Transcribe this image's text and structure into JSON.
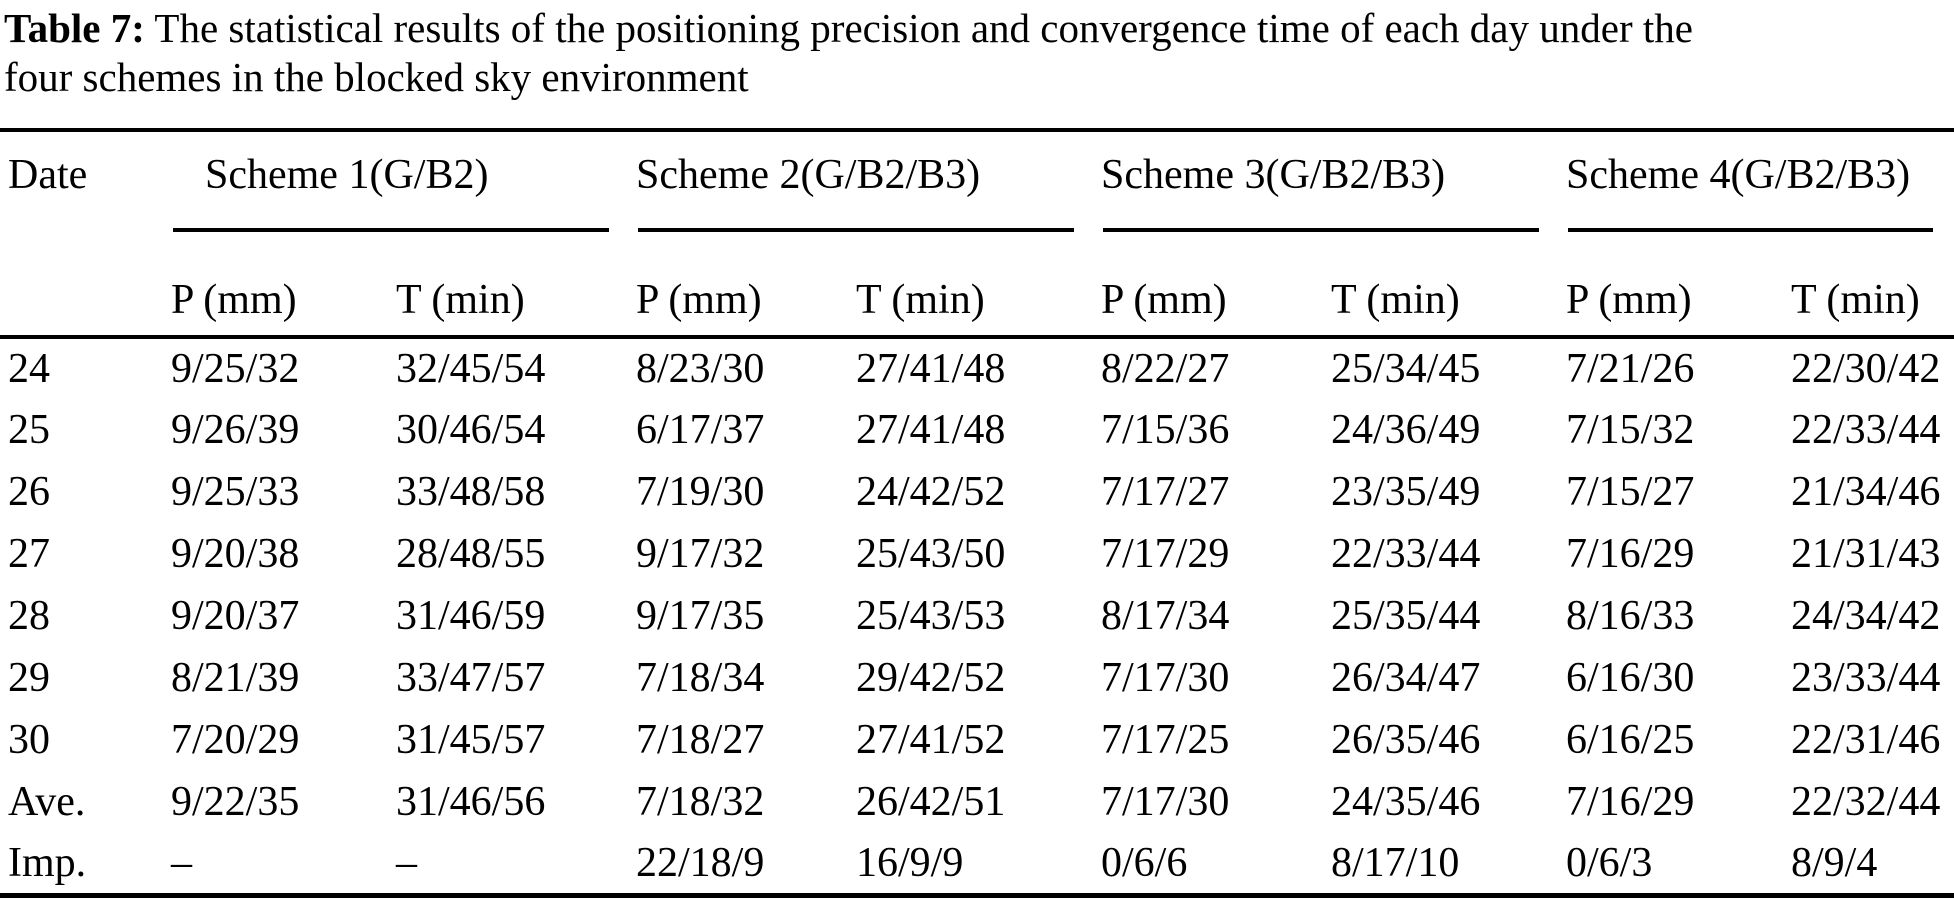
{
  "caption": {
    "label": "Table 7:",
    "line1": "The statistical results of the positioning precision and convergence time of each day under the",
    "line2": "four schemes in the blocked sky environment"
  },
  "table": {
    "date_header": "Date",
    "groups": [
      {
        "label": "Scheme 1(G/B2)",
        "sub": [
          "P (mm)",
          "T (min)"
        ]
      },
      {
        "label": "Scheme 2(G/B2/B3)",
        "sub": [
          "P (mm)",
          "T (min)"
        ]
      },
      {
        "label": "Scheme 3(G/B2/B3)",
        "sub": [
          "P (mm)",
          "T (min)"
        ]
      },
      {
        "label": "Scheme 4(G/B2/B3)",
        "sub": [
          "P (mm)",
          "T (min)"
        ]
      }
    ],
    "rows": [
      {
        "date": "24",
        "values": [
          "9/25/32",
          "32/45/54",
          "8/23/30",
          "27/41/48",
          "8/22/27",
          "25/34/45",
          "7/21/26",
          "22/30/42"
        ]
      },
      {
        "date": "25",
        "values": [
          "9/26/39",
          "30/46/54",
          "6/17/37",
          "27/41/48",
          "7/15/36",
          "24/36/49",
          "7/15/32",
          "22/33/44"
        ]
      },
      {
        "date": "26",
        "values": [
          "9/25/33",
          "33/48/58",
          "7/19/30",
          "24/42/52",
          "7/17/27",
          "23/35/49",
          "7/15/27",
          "21/34/46"
        ]
      },
      {
        "date": "27",
        "values": [
          "9/20/38",
          "28/48/55",
          "9/17/32",
          "25/43/50",
          "7/17/29",
          "22/33/44",
          "7/16/29",
          "21/31/43"
        ]
      },
      {
        "date": "28",
        "values": [
          "9/20/37",
          "31/46/59",
          "9/17/35",
          "25/43/53",
          "8/17/34",
          "25/35/44",
          "8/16/33",
          "24/34/42"
        ]
      },
      {
        "date": "29",
        "values": [
          "8/21/39",
          "33/47/57",
          "7/18/34",
          "29/42/52",
          "7/17/30",
          "26/34/47",
          "6/16/30",
          "23/33/44"
        ]
      },
      {
        "date": "30",
        "values": [
          "7/20/29",
          "31/45/57",
          "7/18/27",
          "27/41/52",
          "7/17/25",
          "26/35/46",
          "6/16/25",
          "22/31/46"
        ]
      },
      {
        "date": "Ave.",
        "values": [
          "9/22/35",
          "31/46/56",
          "7/18/32",
          "26/42/51",
          "7/17/30",
          "24/35/46",
          "7/16/29",
          "22/32/44"
        ]
      },
      {
        "date": "Imp.",
        "values": [
          "–",
          "–",
          "22/18/9",
          "16/9/9",
          "0/6/6",
          "8/17/10",
          "0/6/3",
          "8/9/4"
        ]
      }
    ]
  }
}
